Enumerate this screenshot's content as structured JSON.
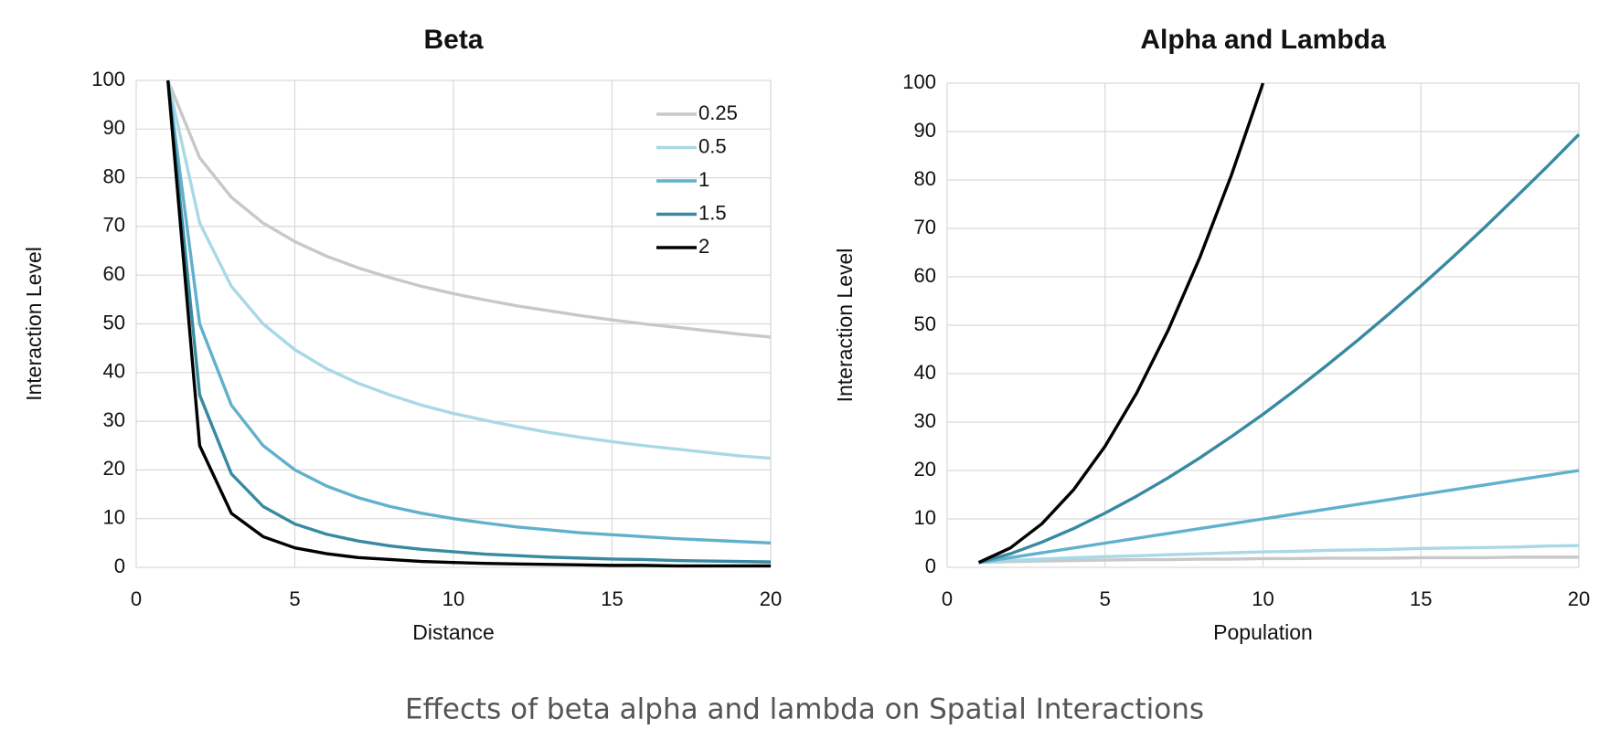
{
  "chart_data": [
    {
      "type": "line",
      "title": "Beta",
      "x_label": "Distance",
      "y_label": "Interaction Level",
      "x": [
        1,
        2,
        3,
        4,
        5,
        6,
        7,
        8,
        9,
        10,
        11,
        12,
        13,
        14,
        15,
        16,
        17,
        18,
        19,
        20
      ],
      "xlim": [
        0,
        20
      ],
      "xticks": [
        0,
        5,
        10,
        15,
        20
      ],
      "ylim": [
        0,
        100
      ],
      "yticks": [
        0,
        10,
        20,
        30,
        40,
        50,
        60,
        70,
        80,
        90,
        100
      ],
      "grid": true,
      "legend": "upper right",
      "series": [
        {
          "name": "0.25",
          "color": "#c8c8c8",
          "values": [
            100,
            84.1,
            76.0,
            70.7,
            66.9,
            63.9,
            61.5,
            59.5,
            57.7,
            56.2,
            54.9,
            53.7,
            52.7,
            51.7,
            50.8,
            50.0,
            49.3,
            48.6,
            47.9,
            47.3
          ]
        },
        {
          "name": "0.5",
          "color": "#a9d8e7",
          "values": [
            100,
            70.7,
            57.7,
            50,
            44.7,
            40.8,
            37.8,
            35.4,
            33.3,
            31.6,
            30.2,
            28.9,
            27.7,
            26.7,
            25.8,
            25,
            24.3,
            23.6,
            22.9,
            22.4
          ]
        },
        {
          "name": "1",
          "color": "#61b1cc",
          "values": [
            100,
            50,
            33.3,
            25,
            20,
            16.7,
            14.3,
            12.5,
            11.1,
            10,
            9.1,
            8.3,
            7.7,
            7.1,
            6.7,
            6.3,
            5.9,
            5.6,
            5.3,
            5
          ]
        },
        {
          "name": "1.5",
          "color": "#378aa1",
          "values": [
            100,
            35.4,
            19.2,
            12.5,
            8.9,
            6.8,
            5.4,
            4.4,
            3.7,
            3.2,
            2.7,
            2.4,
            2.1,
            1.9,
            1.7,
            1.6,
            1.4,
            1.3,
            1.2,
            1.1
          ]
        },
        {
          "name": "2",
          "color": "#000000",
          "values": [
            100,
            25,
            11.1,
            6.3,
            4,
            2.8,
            2,
            1.6,
            1.2,
            1,
            0.8,
            0.7,
            0.6,
            0.5,
            0.4,
            0.4,
            0.3,
            0.3,
            0.3,
            0.3
          ]
        }
      ]
    },
    {
      "type": "line",
      "title": "Alpha and Lambda",
      "x_label": "Population",
      "y_label": "Interaction Level",
      "x": [
        1,
        2,
        3,
        4,
        5,
        6,
        7,
        8,
        9,
        10,
        11,
        12,
        13,
        14,
        15,
        16,
        17,
        18,
        19,
        20
      ],
      "xlim": [
        0,
        20
      ],
      "xticks": [
        0,
        5,
        10,
        15,
        20
      ],
      "ylim": [
        0,
        100
      ],
      "yticks": [
        0,
        10,
        20,
        30,
        40,
        50,
        60,
        70,
        80,
        90,
        100
      ],
      "grid": true,
      "series": [
        {
          "color": "#c8c8c8",
          "values": [
            1,
            1.2,
            1.3,
            1.4,
            1.5,
            1.6,
            1.6,
            1.7,
            1.7,
            1.8,
            1.8,
            1.9,
            1.9,
            1.9,
            2,
            2,
            2,
            2.1,
            2.1,
            2.1
          ]
        },
        {
          "color": "#a9d8e7",
          "values": [
            1,
            1.4,
            1.7,
            2,
            2.2,
            2.4,
            2.6,
            2.8,
            3,
            3.2,
            3.3,
            3.5,
            3.6,
            3.7,
            3.9,
            4,
            4.1,
            4.2,
            4.4,
            4.5
          ]
        },
        {
          "color": "#61b1cc",
          "values": [
            1,
            2,
            3,
            4,
            5,
            6,
            7,
            8,
            9,
            10,
            11,
            12,
            13,
            14,
            15,
            16,
            17,
            18,
            19,
            20
          ]
        },
        {
          "color": "#378aa1",
          "values": [
            1,
            2.8,
            5.2,
            8,
            11.2,
            14.7,
            18.5,
            22.6,
            27,
            31.6,
            36.5,
            41.6,
            46.9,
            52.4,
            58.1,
            64,
            70.1,
            76.4,
            82.8,
            89.4
          ]
        },
        {
          "color": "#000000",
          "values": [
            1,
            4,
            9,
            16,
            25,
            36,
            49,
            64,
            81,
            100,
            null,
            null,
            null,
            null,
            null,
            null,
            null,
            null,
            null,
            null
          ]
        }
      ]
    }
  ],
  "caption": "Effects of beta alpha and lambda on Spatial Interactions"
}
